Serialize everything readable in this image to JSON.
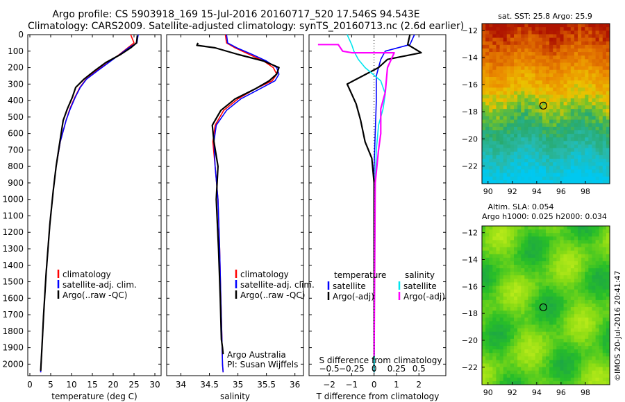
{
  "header": {
    "title_line1": "Argo profile: CS 5903918_169 15-Jul-2016 20160717_520 17.546S 94.543E",
    "title_line2": "Climatology: CARS2009. Satellite-adjusted climatology: synTS_20160713.nc (2.6d earlier)"
  },
  "colors": {
    "climatology": "#ff0000",
    "satellite": "#0000ff",
    "argo": "#000000",
    "satellite_s": "#00e5ee",
    "argo_adj_s": "#ff00ff"
  },
  "chart_data": [
    {
      "type": "line",
      "name": "temperature-profile",
      "xlabel": "temperature (deg C)",
      "xlim": [
        -0.5,
        31.5
      ],
      "xticks": [
        0,
        5,
        10,
        15,
        20,
        25,
        30
      ],
      "ylim": [
        0,
        2070
      ],
      "yticks": [
        0,
        100,
        200,
        300,
        400,
        500,
        600,
        700,
        800,
        900,
        1000,
        1100,
        1200,
        1300,
        1400,
        1500,
        1600,
        1700,
        1800,
        1900,
        2000
      ],
      "legend": [
        "climatology",
        "satellite-adj. clim.",
        "Argo(..raw -QC)"
      ],
      "series": [
        {
          "name": "climatology",
          "color": "#ff0000",
          "x": [
            24.2,
            25.0,
            23.5,
            21.5,
            18.8,
            16.0,
            13.5,
            12.0,
            10.8,
            9.6,
            8.7,
            7.3,
            6.3,
            5.6,
            4.8,
            3.9,
            3.3,
            2.9,
            2.6
          ],
          "y": [
            0,
            50,
            80,
            120,
            170,
            220,
            270,
            320,
            380,
            450,
            520,
            650,
            800,
            950,
            1150,
            1450,
            1700,
            1900,
            2050
          ]
        },
        {
          "name": "satellite-adj. clim.",
          "color": "#0000ff",
          "x": [
            26.0,
            25.7,
            23.7,
            21.6,
            18.9,
            16.2,
            13.6,
            12.1,
            10.9,
            9.7,
            8.7,
            7.3,
            6.3,
            5.6,
            4.8,
            3.9,
            3.3,
            2.9,
            2.6
          ],
          "y": [
            0,
            50,
            80,
            120,
            170,
            220,
            270,
            320,
            380,
            450,
            520,
            650,
            800,
            950,
            1150,
            1450,
            1700,
            1900,
            2050
          ]
        },
        {
          "name": "Argo(..raw -QC)",
          "color": "#000000",
          "x": [
            25.8,
            25.6,
            24.2,
            21.8,
            18.2,
            15.5,
            13.0,
            11.0,
            10.2,
            9.0,
            8.0,
            7.2,
            6.3,
            5.6,
            4.8,
            3.9,
            3.3,
            2.9,
            2.6
          ],
          "y": [
            5,
            50,
            80,
            120,
            170,
            220,
            270,
            320,
            380,
            450,
            520,
            650,
            800,
            950,
            1150,
            1450,
            1700,
            1900,
            2040
          ]
        }
      ]
    },
    {
      "type": "line",
      "name": "salinity-profile",
      "xlabel": "salinity",
      "xlim": [
        33.75,
        36.15
      ],
      "xticks": [
        34,
        34.5,
        35,
        35.5,
        36
      ],
      "ylim": [
        0,
        2070
      ],
      "legend": [
        "climatology",
        "satellite-adj. clim.",
        "Argo(..raw -QC)"
      ],
      "notes": [
        "Argo Australia",
        "PI: Susan Wijffels"
      ],
      "series": [
        {
          "name": "climatology",
          "color": "#ff0000",
          "x": [
            34.78,
            34.8,
            34.95,
            35.2,
            35.45,
            35.62,
            35.68,
            35.6,
            35.3,
            35.0,
            34.75,
            34.6,
            34.56,
            34.6,
            34.65,
            34.68,
            34.7,
            34.72,
            34.73,
            34.74
          ],
          "y": [
            0,
            50,
            80,
            120,
            160,
            200,
            240,
            280,
            330,
            390,
            460,
            550,
            650,
            800,
            1000,
            1300,
            1600,
            1850,
            2000,
            2050
          ]
        },
        {
          "name": "satellite-adj. clim.",
          "color": "#0000ff",
          "x": [
            34.8,
            34.82,
            34.98,
            35.25,
            35.5,
            35.68,
            35.72,
            35.65,
            35.38,
            35.05,
            34.8,
            34.62,
            34.58,
            34.6,
            34.65,
            34.68,
            34.7,
            34.72,
            34.73,
            34.74
          ],
          "y": [
            0,
            50,
            80,
            120,
            160,
            200,
            240,
            280,
            330,
            390,
            460,
            550,
            650,
            800,
            1000,
            1300,
            1600,
            1850,
            2000,
            2050
          ]
        },
        {
          "name": "Argo(..raw -QC)",
          "color": "#000000",
          "x": [
            34.3,
            34.28,
            34.6,
            35.0,
            35.45,
            35.72,
            35.68,
            35.55,
            35.3,
            34.95,
            34.7,
            34.55,
            34.58,
            34.65,
            34.62,
            34.66,
            34.69,
            34.71,
            34.73,
            34.74
          ],
          "y": [
            50,
            65,
            80,
            120,
            160,
            200,
            240,
            280,
            330,
            390,
            460,
            550,
            650,
            800,
            1000,
            1300,
            1600,
            1850,
            1900,
            1940
          ]
        }
      ]
    },
    {
      "type": "line",
      "name": "difference-profile",
      "xlabel_bottom": "T difference from climatology",
      "xlabel_top": "S difference from climatology",
      "xlim": [
        -2.9,
        3.2
      ],
      "xticks_t": [
        -2,
        -1,
        0,
        1,
        2
      ],
      "xticks_s": [
        -0.5,
        -0.25,
        0,
        0.25,
        0.5
      ],
      "xtick_labels_s": [
        "−0.5",
        "−0.25",
        "0",
        "0.25",
        "0.5"
      ],
      "ylim": [
        0,
        2070
      ],
      "legend_temperature": {
        "title": "temperature",
        "items": [
          "satellite",
          "Argo(-adj)"
        ]
      },
      "legend_salinity": {
        "title": "salinity",
        "items": [
          "satellite",
          "Argo(-adj)"
        ]
      },
      "series": [
        {
          "name": "temperature satellite",
          "color": "#0000ff",
          "x": [
            1.8,
            1.6,
            0.5,
            0.3,
            0.1,
            0.1,
            0.05,
            0.0,
            0.0,
            0.0,
            0.0
          ],
          "y": [
            0,
            60,
            100,
            150,
            250,
            400,
            600,
            800,
            1200,
            1600,
            2050
          ]
        },
        {
          "name": "temperature Argo(-adj)",
          "color": "#000000",
          "x": [
            1.6,
            1.5,
            2.1,
            0.6,
            0.2,
            -1.2,
            -1.0,
            -0.8,
            -0.6,
            -0.4,
            -0.1,
            0.0,
            0.0,
            0.0,
            0.0
          ],
          "y": [
            0,
            60,
            110,
            150,
            200,
            300,
            360,
            420,
            520,
            650,
            750,
            900,
            1200,
            1600,
            2050
          ]
        },
        {
          "name": "salinity satellite",
          "color": "#00e5ee",
          "x": [
            -1.2,
            -1.0,
            -0.9,
            -0.7,
            -0.4,
            0.3,
            0.5,
            0.4,
            0.2,
            0.1,
            0.05,
            0.0
          ],
          "y": [
            0,
            60,
            100,
            150,
            200,
            280,
            360,
            450,
            550,
            700,
            900,
            2050
          ]
        },
        {
          "name": "salinity Argo(-adj)",
          "color": "#ff00ff",
          "x": [
            -2.5,
            -1.6,
            -1.4,
            -1.0,
            0.9,
            0.6,
            0.5,
            0.3,
            0.3,
            0.2,
            0.05,
            0.0
          ],
          "y": [
            60,
            60,
            100,
            110,
            110,
            200,
            350,
            450,
            600,
            700,
            900,
            1950
          ]
        }
      ]
    },
    {
      "type": "heatmap",
      "name": "sst-map",
      "title": "sat. SST: 25.8  Argo: 25.9",
      "xlim": [
        89.5,
        100
      ],
      "ylim": [
        -23.3,
        -11.5
      ],
      "xticks": [
        90,
        92,
        94,
        96,
        98
      ],
      "yticks": [
        -12,
        -14,
        -16,
        -18,
        -20,
        -22
      ],
      "argo_position": [
        94.543,
        -17.546
      ]
    },
    {
      "type": "heatmap",
      "name": "sla-map",
      "title_line1": "Altim. SLA: 0.054",
      "title_line2": "Argo h1000: 0.025 h2000: 0.034",
      "xlim": [
        89.5,
        100
      ],
      "ylim": [
        -23.3,
        -11.5
      ],
      "xticks": [
        90,
        92,
        94,
        96,
        98
      ],
      "yticks": [
        -12,
        -14,
        -16,
        -18,
        -20,
        -22
      ],
      "argo_position": [
        94.543,
        -17.546
      ]
    }
  ],
  "credit": "©IMOS 20-Jul-2016 20:41:47"
}
